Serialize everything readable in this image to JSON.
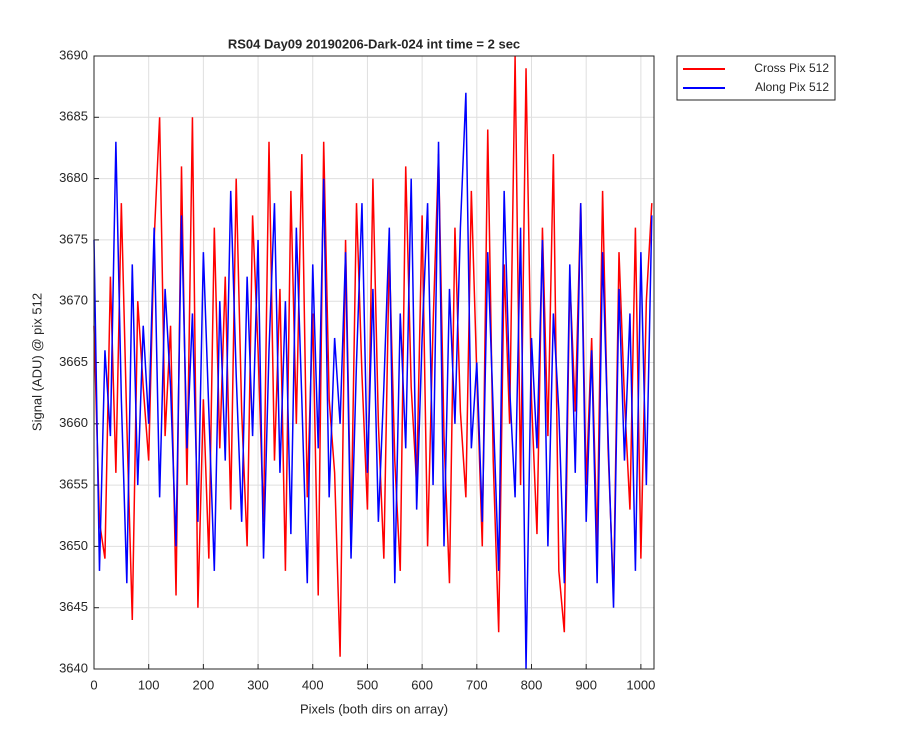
{
  "chart_data": {
    "type": "line",
    "title": "RS04 Day09 20190206-Dark-024 int time = 2 sec",
    "x_label": "Pixels (both dirs on array)",
    "y_label": "Signal (ADU) @ pix 512",
    "x": [
      0,
      10,
      20,
      30,
      40,
      50,
      60,
      70,
      80,
      90,
      100,
      110,
      120,
      130,
      140,
      150,
      160,
      170,
      180,
      190,
      200,
      210,
      220,
      230,
      240,
      250,
      260,
      270,
      280,
      290,
      300,
      310,
      320,
      330,
      340,
      350,
      360,
      370,
      380,
      390,
      400,
      410,
      420,
      430,
      440,
      450,
      460,
      470,
      480,
      490,
      500,
      510,
      520,
      530,
      540,
      550,
      560,
      570,
      580,
      590,
      600,
      610,
      620,
      630,
      640,
      650,
      660,
      670,
      680,
      690,
      700,
      710,
      720,
      730,
      740,
      750,
      760,
      770,
      780,
      790,
      800,
      810,
      820,
      830,
      840,
      850,
      860,
      870,
      880,
      890,
      900,
      910,
      920,
      930,
      940,
      950,
      960,
      970,
      980,
      990,
      1000,
      1010,
      1020
    ],
    "series": [
      {
        "name": "Cross Pix 512",
        "color": "#ff0000",
        "values": [
          3668,
          3652,
          3649,
          3672,
          3656,
          3678,
          3660,
          3644,
          3670,
          3663,
          3657,
          3675,
          3685,
          3659,
          3668,
          3646,
          3681,
          3655,
          3685,
          3645,
          3662,
          3649,
          3676,
          3658,
          3672,
          3653,
          3680,
          3661,
          3650,
          3677,
          3666,
          3652,
          3683,
          3657,
          3671,
          3648,
          3679,
          3660,
          3682,
          3654,
          3669,
          3646,
          3683,
          3662,
          3656,
          3641,
          3675,
          3651,
          3678,
          3664,
          3653,
          3680,
          3660,
          3649,
          3674,
          3657,
          3648,
          3681,
          3663,
          3655,
          3677,
          3650,
          3668,
          3682,
          3659,
          3647,
          3676,
          3661,
          3654,
          3679,
          3664,
          3650,
          3684,
          3657,
          3643,
          3673,
          3660,
          3690,
          3655,
          3689,
          3662,
          3651,
          3676,
          3659,
          3682,
          3648,
          3643,
          3672,
          3661,
          3678,
          3655,
          3667,
          3650,
          3679,
          3658,
          3646,
          3674,
          3662,
          3653,
          3676,
          3649,
          3670,
          3678
        ]
      },
      {
        "name": "Along Pix 512",
        "color": "#0000ff",
        "values": [
          3675,
          3648,
          3666,
          3659,
          3683,
          3662,
          3647,
          3673,
          3655,
          3668,
          3660,
          3676,
          3654,
          3671,
          3663,
          3650,
          3677,
          3658,
          3669,
          3652,
          3674,
          3661,
          3648,
          3670,
          3657,
          3679,
          3664,
          3652,
          3672,
          3659,
          3675,
          3649,
          3666,
          3678,
          3656,
          3670,
          3651,
          3676,
          3662,
          3647,
          3673,
          3658,
          3680,
          3654,
          3667,
          3660,
          3674,
          3649,
          3665,
          3678,
          3656,
          3671,
          3652,
          3663,
          3676,
          3647,
          3669,
          3658,
          3680,
          3653,
          3667,
          3678,
          3655,
          3683,
          3650,
          3671,
          3660,
          3676,
          3687,
          3658,
          3665,
          3652,
          3674,
          3661,
          3648,
          3679,
          3663,
          3654,
          3676,
          3640,
          3667,
          3658,
          3675,
          3650,
          3669,
          3661,
          3647,
          3673,
          3656,
          3678,
          3652,
          3666,
          3647,
          3674,
          3659,
          3645,
          3671,
          3657,
          3669,
          3648,
          3674,
          3655,
          3677
        ]
      }
    ],
    "xlim": [
      0,
      1024
    ],
    "ylim": [
      3640,
      3690
    ],
    "xticks": [
      0,
      100,
      200,
      300,
      400,
      500,
      600,
      700,
      800,
      900,
      1000
    ],
    "yticks": [
      3640,
      3645,
      3650,
      3655,
      3660,
      3665,
      3670,
      3675,
      3680,
      3685,
      3690
    ],
    "grid": true,
    "legend": "northeastoutside"
  }
}
